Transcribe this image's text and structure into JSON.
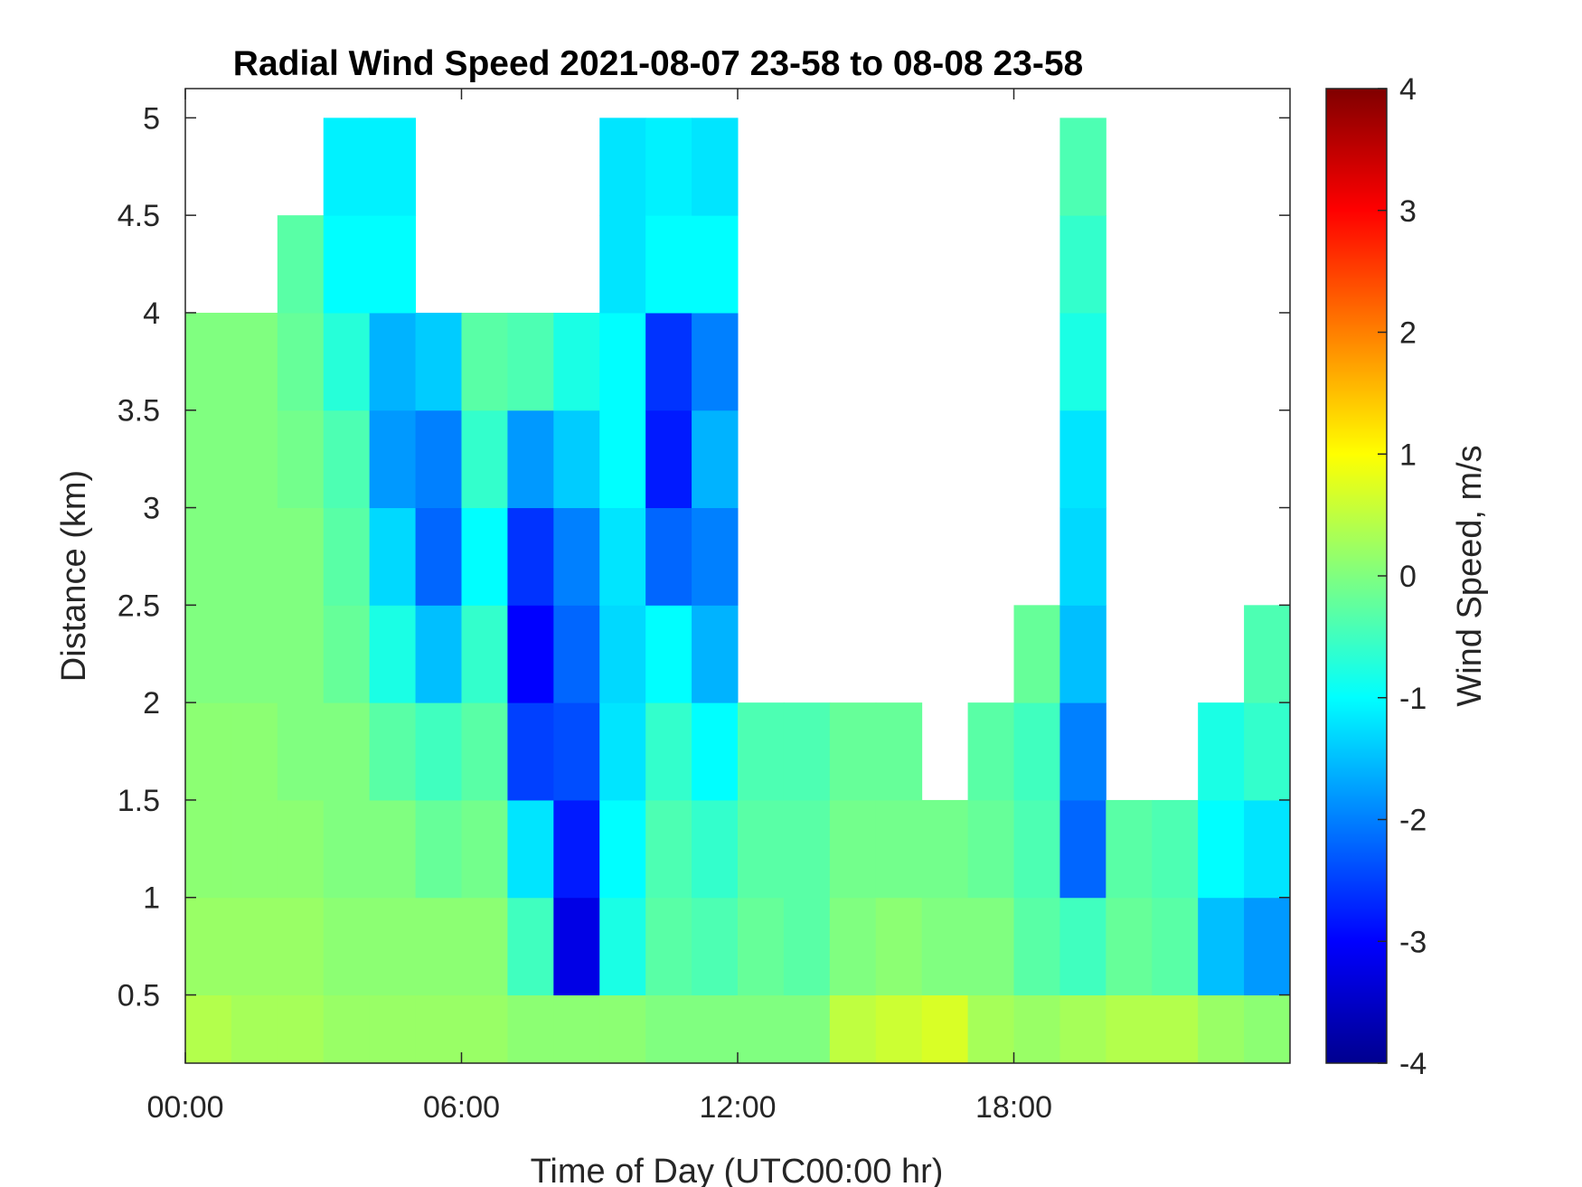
{
  "chart_data": {
    "type": "heatmap",
    "title": "Radial Wind Speed 2021-08-07 23-58 to 08-08 23-58",
    "xlabel": "Time of Day (UTC00:00 hr)",
    "ylabel": "Distance (km)",
    "colorbar_label": "Wind Speed, m/s",
    "colormap": "jet",
    "x_unit": "hours",
    "xlim": [
      0,
      24
    ],
    "ylim": [
      0.15,
      5.15
    ],
    "clim": [
      -4,
      4
    ],
    "x_ticks": [
      {
        "value": 0,
        "label": "00:00"
      },
      {
        "value": 6,
        "label": "06:00"
      },
      {
        "value": 12,
        "label": "12:00"
      },
      {
        "value": 18,
        "label": "18:00"
      }
    ],
    "y_ticks": [
      {
        "value": 0.5,
        "label": "0.5"
      },
      {
        "value": 1,
        "label": "1"
      },
      {
        "value": 1.5,
        "label": "1.5"
      },
      {
        "value": 2,
        "label": "2"
      },
      {
        "value": 2.5,
        "label": "2.5"
      },
      {
        "value": 3,
        "label": "3"
      },
      {
        "value": 3.5,
        "label": "3.5"
      },
      {
        "value": 4,
        "label": "4"
      },
      {
        "value": 4.5,
        "label": "4.5"
      },
      {
        "value": 5,
        "label": "5"
      }
    ],
    "c_ticks": [
      {
        "value": -4,
        "label": "-4"
      },
      {
        "value": -3,
        "label": "-3"
      },
      {
        "value": -2,
        "label": "-2"
      },
      {
        "value": -1,
        "label": "-1"
      },
      {
        "value": 0,
        "label": "0"
      },
      {
        "value": 1,
        "label": "1"
      },
      {
        "value": 2,
        "label": "2"
      },
      {
        "value": 3,
        "label": "3"
      },
      {
        "value": 4,
        "label": "4"
      }
    ],
    "time_hours": [
      0,
      1,
      2,
      3,
      4,
      5,
      6,
      7,
      8,
      9,
      10,
      11,
      12,
      13,
      14,
      15,
      16,
      17,
      18,
      19,
      20,
      21,
      22,
      23
    ],
    "distance_km": [
      0.25,
      0.75,
      1.25,
      1.75,
      2.25,
      2.75,
      3.25,
      3.75,
      4.25,
      4.75
    ],
    "values": [
      [
        0.4,
        0.2,
        0.1,
        0.1,
        0.0,
        0.0,
        0.0,
        0.0,
        null,
        null
      ],
      [
        0.3,
        0.2,
        0.1,
        0.1,
        0.0,
        0.0,
        0.0,
        0.0,
        null,
        null
      ],
      [
        0.3,
        0.2,
        0.1,
        0.0,
        0.0,
        0.0,
        -0.1,
        -0.2,
        -0.3,
        null
      ],
      [
        0.2,
        0.1,
        0.0,
        0.0,
        -0.2,
        -0.3,
        -0.4,
        -0.7,
        -1.0,
        -1.1
      ],
      [
        0.2,
        0.1,
        0.0,
        -0.3,
        -0.8,
        -1.3,
        -1.8,
        -1.6,
        -1.0,
        -1.1
      ],
      [
        0.2,
        0.1,
        -0.2,
        -0.5,
        -1.5,
        -2.2,
        -2.0,
        -1.4,
        null,
        null
      ],
      [
        0.2,
        0.1,
        -0.1,
        -0.3,
        -0.6,
        -1.0,
        -0.6,
        -0.3,
        null,
        null
      ],
      [
        0.1,
        -0.5,
        -1.2,
        -2.5,
        -3.0,
        -2.6,
        -1.8,
        -0.4,
        null,
        null
      ],
      [
        0.1,
        -3.2,
        -2.8,
        -2.4,
        -2.2,
        -2.0,
        -1.4,
        -0.8,
        null,
        null
      ],
      [
        0.1,
        -0.8,
        -1.0,
        -1.2,
        -1.3,
        -1.2,
        -1.0,
        -1.0,
        -1.2,
        -1.2
      ],
      [
        0.0,
        -0.3,
        -0.4,
        -0.6,
        -1.0,
        -2.2,
        -2.8,
        -2.6,
        -1.0,
        -1.1
      ],
      [
        0.0,
        -0.4,
        -0.6,
        -1.0,
        -1.6,
        -2.0,
        -1.6,
        -2.0,
        -1.0,
        -1.2
      ],
      [
        0.0,
        -0.2,
        -0.3,
        -0.4,
        null,
        null,
        null,
        null,
        null,
        null
      ],
      [
        0.0,
        -0.3,
        -0.3,
        -0.4,
        null,
        null,
        null,
        null,
        null,
        null
      ],
      [
        0.5,
        0.0,
        -0.1,
        -0.2,
        null,
        null,
        null,
        null,
        null,
        null
      ],
      [
        0.6,
        0.1,
        -0.1,
        -0.2,
        null,
        null,
        null,
        null,
        null,
        null
      ],
      [
        0.7,
        0.0,
        -0.1,
        null,
        null,
        null,
        null,
        null,
        null,
        null
      ],
      [
        0.3,
        0.0,
        -0.2,
        -0.3,
        null,
        null,
        null,
        null,
        null,
        null
      ],
      [
        0.2,
        -0.3,
        -0.4,
        -0.5,
        -0.2,
        null,
        null,
        null,
        null,
        null
      ],
      [
        0.3,
        -0.5,
        -2.2,
        -2.0,
        -1.5,
        -1.3,
        -1.2,
        -0.8,
        -0.6,
        -0.4
      ],
      [
        0.4,
        -0.2,
        -0.3,
        null,
        null,
        null,
        null,
        null,
        null,
        null
      ],
      [
        0.4,
        -0.3,
        -0.4,
        null,
        null,
        null,
        null,
        null,
        null,
        null
      ],
      [
        0.2,
        -1.5,
        -1.0,
        -0.8,
        null,
        null,
        null,
        null,
        null,
        null
      ],
      [
        0.1,
        -1.8,
        -1.2,
        -0.6,
        -0.4,
        null,
        null,
        null,
        null,
        null
      ]
    ]
  }
}
